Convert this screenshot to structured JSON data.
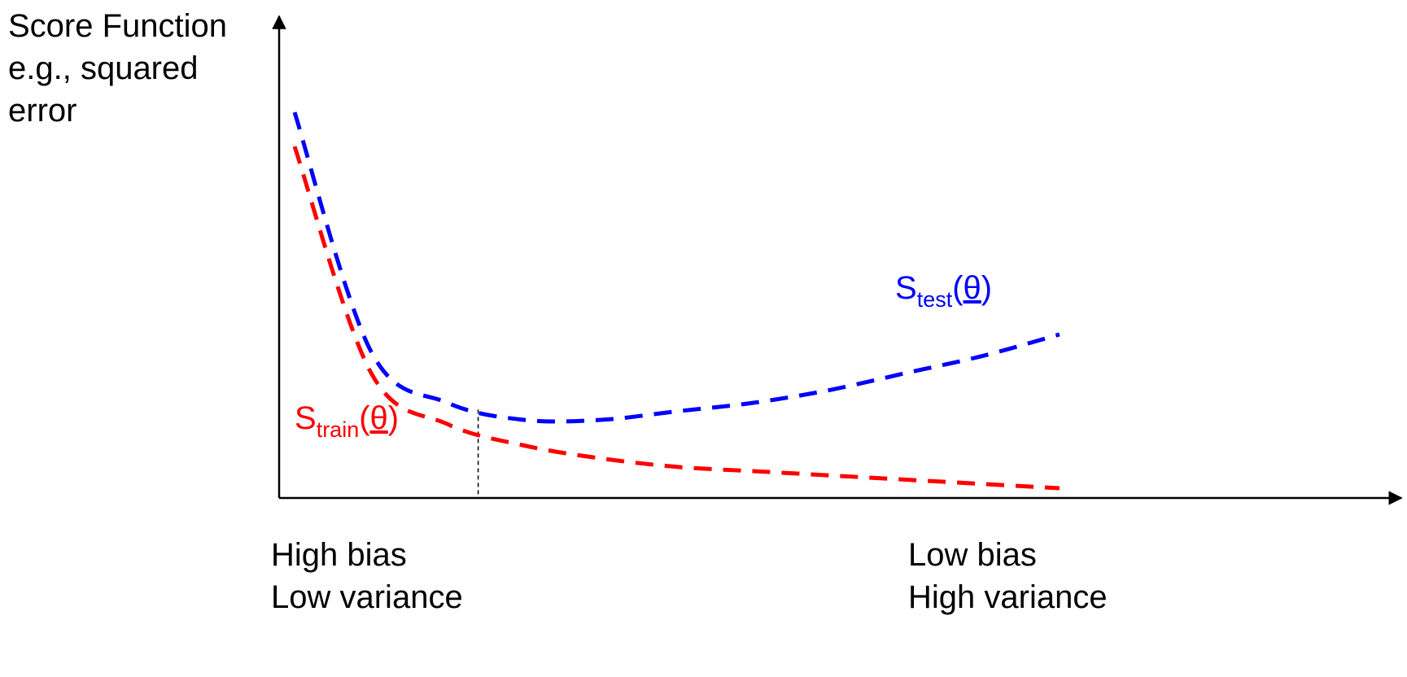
{
  "chart_data": {
    "type": "line",
    "ylabel_lines": [
      "Score Function",
      "e.g., squared",
      "error"
    ],
    "xlabel_left_lines": [
      "High bias",
      "Low variance"
    ],
    "xlabel_right_lines": [
      "Low bias",
      "High variance"
    ],
    "x": [
      0,
      0.1,
      0.2,
      0.3,
      0.4,
      0.5,
      0.6,
      0.7,
      0.8,
      0.9,
      1.0
    ],
    "series": [
      {
        "name_main": "S",
        "name_sub": "test",
        "name_paren_open": "(",
        "name_theta": "θ",
        "name_paren_close": ")",
        "color": "#0000ff",
        "style": "dashed",
        "values": [
          0.88,
          0.32,
          0.2,
          0.16,
          0.16,
          0.18,
          0.2,
          0.23,
          0.27,
          0.31,
          0.36
        ]
      },
      {
        "name_main": "S",
        "name_sub": "train",
        "name_paren_open": "(",
        "name_theta": "θ",
        "name_paren_close": ")",
        "color": "#ff0000",
        "style": "dashed",
        "values": [
          0.8,
          0.27,
          0.15,
          0.1,
          0.07,
          0.05,
          0.04,
          0.03,
          0.02,
          0.01,
          0.0
        ]
      }
    ],
    "optimum_marker": {
      "x": 0.24,
      "style": "dashed",
      "color": "#000000"
    },
    "grid": false,
    "legend": "none"
  }
}
